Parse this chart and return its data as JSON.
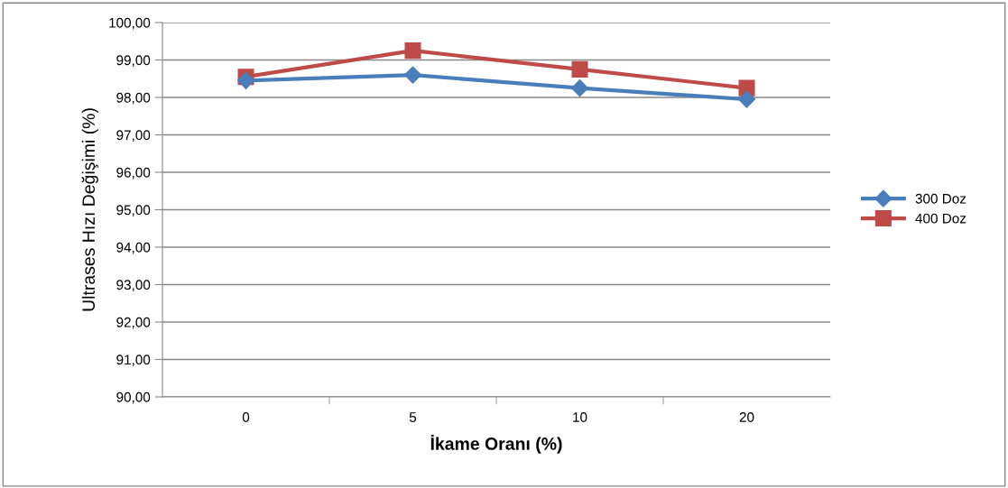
{
  "chart_data": {
    "type": "line",
    "xlabel": "İkame Oranı (%)",
    "ylabel": "Ultrases Hızı Değişimi (%)",
    "categories": [
      "0",
      "5",
      "10",
      "20"
    ],
    "series": [
      {
        "name": "300 Doz",
        "color": "#4a7ebb",
        "marker": "diamond",
        "values": [
          98.45,
          98.6,
          98.25,
          97.95
        ]
      },
      {
        "name": "400 Doz",
        "color": "#be4b48",
        "marker": "square",
        "values": [
          98.55,
          99.25,
          98.75,
          98.25
        ]
      }
    ],
    "ylim": [
      90,
      100
    ],
    "yticks": [
      {
        "value": 90,
        "label": "90,00"
      },
      {
        "value": 91,
        "label": "91,00"
      },
      {
        "value": 92,
        "label": "92,00"
      },
      {
        "value": 93,
        "label": "93,00"
      },
      {
        "value": 94,
        "label": "94,00"
      },
      {
        "value": 95,
        "label": "95,00"
      },
      {
        "value": 96,
        "label": "96,00"
      },
      {
        "value": 97,
        "label": "97,00"
      },
      {
        "value": 98,
        "label": "98,00"
      },
      {
        "value": 99,
        "label": "99,00"
      },
      {
        "value": 100,
        "label": "100,00"
      }
    ],
    "grid": "y",
    "legend": "right",
    "line_style": "solid"
  }
}
